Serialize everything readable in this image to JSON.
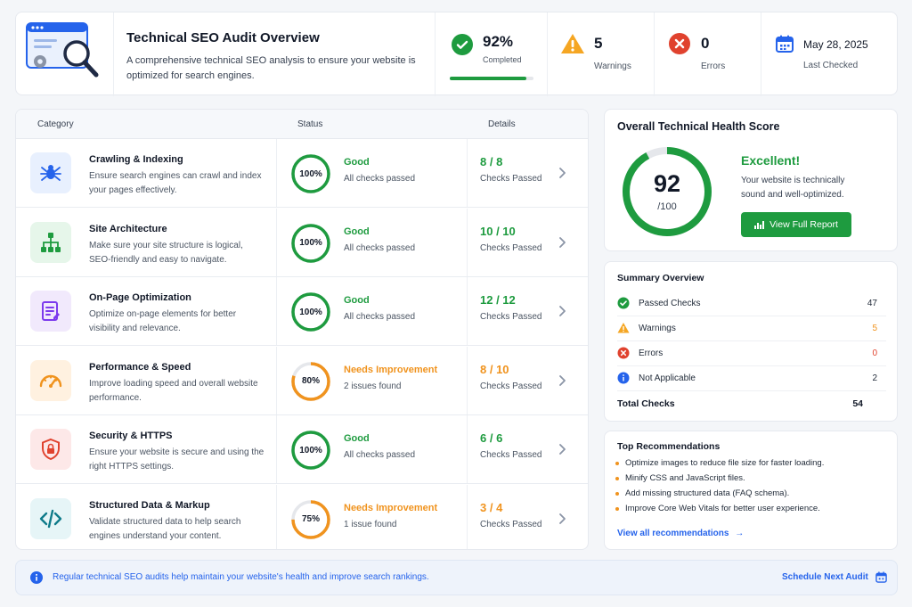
{
  "header": {
    "title": "Technical SEO Audit Overview",
    "description": "A comprehensive technical SEO analysis to ensure your website is optimized for search engines.",
    "completed": {
      "value": "92%",
      "label": "Completed",
      "progress": 0.92
    },
    "warnings": {
      "value": "5",
      "label": "Warnings"
    },
    "errors": {
      "value": "0",
      "label": "Errors"
    },
    "last_checked": {
      "value": "May 28, 2025",
      "label": "Last Checked"
    }
  },
  "table": {
    "headers": {
      "category": "Category",
      "status": "Status",
      "details": "Details"
    },
    "rows": [
      {
        "title": "Crawling & Indexing",
        "desc": "Ensure search engines can crawl and index your pages effectively.",
        "percent": "100%",
        "progress": 1.0,
        "status": "Good",
        "status_sub": "All checks passed",
        "detail": "8 / 8",
        "detail_sub": "Checks Passed",
        "icon": "spider-icon",
        "tone": "good"
      },
      {
        "title": "Site Architecture",
        "desc": "Make sure your site structure is logical, SEO-friendly and easy to navigate.",
        "percent": "100%",
        "progress": 1.0,
        "status": "Good",
        "status_sub": "All checks passed",
        "detail": "10 / 10",
        "detail_sub": "Checks Passed",
        "icon": "sitemap-icon",
        "tone": "good"
      },
      {
        "title": "On-Page Optimization",
        "desc": "Optimize on-page elements for better visibility and relevance.",
        "percent": "100%",
        "progress": 1.0,
        "status": "Good",
        "status_sub": "All checks passed",
        "detail": "12 / 12",
        "detail_sub": "Checks Passed",
        "icon": "page-edit-icon",
        "tone": "good"
      },
      {
        "title": "Performance & Speed",
        "desc": "Improve loading speed and overall website performance.",
        "percent": "80%",
        "progress": 0.8,
        "status": "Needs Improvement",
        "status_sub": "2 issues found",
        "detail": "8 / 10",
        "detail_sub": "Checks Passed",
        "icon": "speedometer-icon",
        "tone": "warn"
      },
      {
        "title": "Security & HTTPS",
        "desc": "Ensure your website is secure and using the right HTTPS settings.",
        "percent": "100%",
        "progress": 1.0,
        "status": "Good",
        "status_sub": "All checks passed",
        "detail": "6 / 6",
        "detail_sub": "Checks Passed",
        "icon": "shield-lock-icon",
        "tone": "good"
      },
      {
        "title": "Structured Data & Markup",
        "desc": "Validate structured data to help search engines understand your content.",
        "percent": "75%",
        "progress": 0.75,
        "status": "Needs Improvement",
        "status_sub": "1 issue found",
        "detail": "3 / 4",
        "detail_sub": "Checks Passed",
        "icon": "code-icon",
        "tone": "warn"
      }
    ]
  },
  "health": {
    "title": "Overall Technical Health Score",
    "score": "92",
    "out_of": "/100",
    "progress": 0.92,
    "verdict": "Excellent!",
    "message": "Your website is technically sound and well-optimized.",
    "button": "View Full Report"
  },
  "summary": {
    "title": "Summary Overview",
    "rows": [
      {
        "label": "Passed Checks",
        "value": "47"
      },
      {
        "label": "Warnings",
        "value": "5"
      },
      {
        "label": "Errors",
        "value": "0"
      },
      {
        "label": "Not Applicable",
        "value": "2"
      }
    ],
    "total_label": "Total Checks",
    "total_value": "54"
  },
  "recommendations": {
    "title": "Top Recommendations",
    "items": [
      "Optimize images to reduce file size for faster loading.",
      "Minify CSS and JavaScript files.",
      "Add missing structured data (FAQ schema).",
      "Improve Core Web Vitals for better user experience."
    ],
    "link": "View all recommendations"
  },
  "footer": {
    "note": "Regular technical SEO audits help maintain your website's health and improve search rankings.",
    "action": "Schedule Next Audit"
  },
  "colors": {
    "good": "#1e9b3f",
    "warn": "#f0931e",
    "error": "#e0422e",
    "info": "#2563eb",
    "accent": "#1e9b3f"
  }
}
